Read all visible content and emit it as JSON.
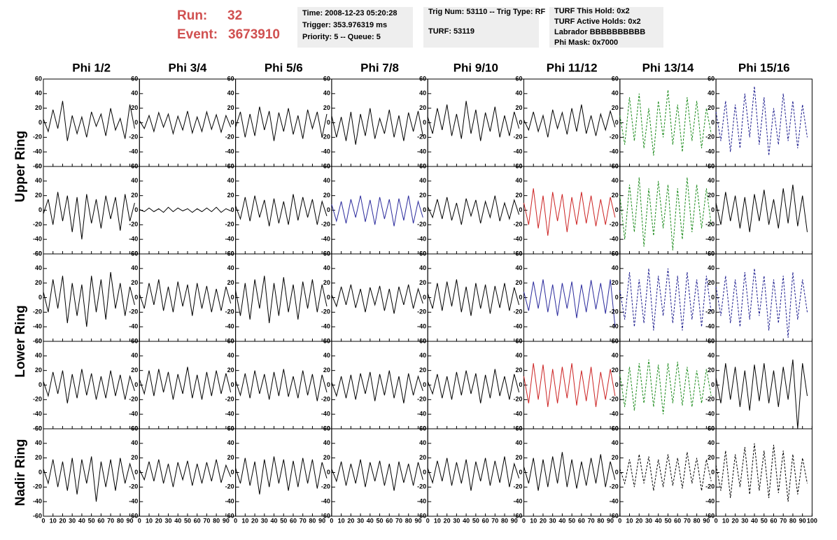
{
  "header": {
    "run_label": "Run:",
    "run": "32",
    "event_label": "Event:",
    "event": "3673910",
    "info1": [
      "Time: 2008-12-23 05:20:28",
      "Trigger: 353.976319 ms",
      "Priority: 5 -- Queue: 5"
    ],
    "info2": [
      "Trig Num: 53110 -- Trig Type: RF",
      "TURF: 53119"
    ],
    "info3": [
      "TURF This Hold: 0x2",
      "TURF Active Holds: 0x2",
      "Labrador BBBBBBBBBB",
      "Phi Mask: 0x7000"
    ]
  },
  "columns": [
    "Phi 1/2",
    "Phi 3/4",
    "Phi 5/6",
    "Phi 7/8",
    "Phi 9/10",
    "Phi 11/12",
    "Phi 13/14",
    "Phi 15/16"
  ],
  "row_labels": [
    "Upper Ring",
    "Lower Ring",
    "Nadir Ring"
  ],
  "axes": {
    "xlim": [
      0,
      100
    ],
    "xticks": [
      0,
      10,
      20,
      30,
      40,
      50,
      60,
      70,
      80,
      90,
      100
    ],
    "ylim": [
      -60,
      60
    ],
    "yticks": [
      -60,
      -40,
      -20,
      0,
      20,
      40,
      60
    ]
  },
  "x": [
    0,
    5,
    10,
    15,
    20,
    25,
    30,
    35,
    40,
    45,
    50,
    55,
    60,
    65,
    70,
    75,
    80,
    85,
    90,
    95
  ],
  "chart_data": [
    {
      "type": "line",
      "color": "#000000",
      "dashed": false,
      "values": [
        5,
        -12,
        18,
        -8,
        30,
        -25,
        10,
        -15,
        8,
        -20,
        15,
        -5,
        12,
        -18,
        20,
        -10,
        6,
        -22,
        25,
        -8
      ]
    },
    {
      "type": "line",
      "color": "#000000",
      "dashed": false,
      "values": [
        3,
        -8,
        10,
        -12,
        14,
        -6,
        12,
        -15,
        9,
        -10,
        16,
        -14,
        8,
        -12,
        15,
        -9,
        11,
        -13,
        10,
        -6
      ]
    },
    {
      "type": "line",
      "color": "#000000",
      "dashed": false,
      "values": [
        -6,
        15,
        -20,
        12,
        -18,
        22,
        -10,
        16,
        -25,
        14,
        -12,
        20,
        -16,
        10,
        -22,
        18,
        -8,
        15,
        -20,
        12
      ]
    },
    {
      "type": "line",
      "color": "#000000",
      "dashed": false,
      "values": [
        10,
        -20,
        8,
        -25,
        15,
        -30,
        12,
        -18,
        20,
        -22,
        6,
        -15,
        18,
        -20,
        10,
        -25,
        14,
        -12,
        16,
        -18
      ]
    },
    {
      "type": "line",
      "color": "#000000",
      "dashed": false,
      "values": [
        8,
        -15,
        20,
        -10,
        25,
        -18,
        12,
        -22,
        30,
        -15,
        18,
        -25,
        14,
        -12,
        22,
        -20,
        10,
        -18,
        15,
        -8
      ]
    },
    {
      "type": "line",
      "color": "#000000",
      "dashed": false,
      "values": [
        4,
        -10,
        15,
        -12,
        10,
        -20,
        18,
        -8,
        14,
        -16,
        20,
        -12,
        25,
        -15,
        10,
        -18,
        12,
        -10,
        16,
        -6
      ]
    },
    {
      "type": "line",
      "color": "#1a8a1a",
      "dashed": true,
      "values": [
        10,
        -30,
        35,
        -25,
        40,
        -35,
        20,
        -45,
        30,
        -20,
        45,
        -30,
        25,
        -40,
        35,
        -25,
        30,
        -35,
        20,
        -15
      ]
    },
    {
      "type": "line",
      "color": "#1a1a8c",
      "dashed": true,
      "values": [
        15,
        -25,
        30,
        -40,
        25,
        -35,
        40,
        -20,
        50,
        -30,
        35,
        -45,
        20,
        -30,
        40,
        -25,
        30,
        -35,
        25,
        -20
      ]
    },
    {
      "type": "line",
      "color": "#000000",
      "dashed": false,
      "values": [
        -5,
        15,
        -20,
        25,
        -15,
        20,
        -30,
        18,
        -40,
        22,
        -18,
        15,
        -25,
        20,
        -12,
        18,
        -28,
        22,
        -15,
        10
      ]
    },
    {
      "type": "line",
      "color": "#000000",
      "dashed": false,
      "values": [
        1,
        -2,
        3,
        -2,
        2,
        -3,
        4,
        -2,
        3,
        -1,
        2,
        -3,
        2,
        -2,
        3,
        -2,
        4,
        -3,
        2,
        -1
      ]
    },
    {
      "type": "line",
      "color": "#000000",
      "dashed": false,
      "values": [
        6,
        -12,
        18,
        -15,
        20,
        -10,
        14,
        -22,
        16,
        -18,
        12,
        -20,
        22,
        -14,
        18,
        -10,
        15,
        -20,
        12,
        -8
      ]
    },
    {
      "type": "line",
      "color": "#2a2a9c",
      "dashed": false,
      "values": [
        8,
        -15,
        12,
        -18,
        15,
        -10,
        20,
        -16,
        14,
        -20,
        18,
        -12,
        15,
        -22,
        16,
        -14,
        20,
        -18,
        12,
        -10
      ]
    },
    {
      "type": "line",
      "color": "#000000",
      "dashed": false,
      "values": [
        5,
        -10,
        15,
        -12,
        18,
        -14,
        10,
        -20,
        16,
        -8,
        14,
        -18,
        12,
        -10,
        20,
        -15,
        10,
        -12,
        14,
        -6
      ]
    },
    {
      "type": "line",
      "color": "#cc2222",
      "dashed": false,
      "values": [
        10,
        -20,
        30,
        -25,
        20,
        -35,
        25,
        -15,
        22,
        -30,
        18,
        -20,
        25,
        -18,
        20,
        -22,
        15,
        -20,
        18,
        -10
      ]
    },
    {
      "type": "line",
      "color": "#1a8a1a",
      "dashed": true,
      "values": [
        20,
        -40,
        35,
        -30,
        45,
        -50,
        30,
        -35,
        40,
        -25,
        35,
        -55,
        30,
        -40,
        45,
        -30,
        35,
        -25,
        30,
        -20
      ]
    },
    {
      "type": "line",
      "color": "#000000",
      "dashed": false,
      "values": [
        10,
        -20,
        25,
        -15,
        20,
        -25,
        18,
        -30,
        22,
        -15,
        28,
        -20,
        15,
        -25,
        30,
        -18,
        35,
        -22,
        20,
        -30
      ]
    },
    {
      "type": "line",
      "color": "#000000",
      "dashed": false,
      "values": [
        8,
        -20,
        25,
        -15,
        30,
        -35,
        20,
        -25,
        18,
        -40,
        30,
        -20,
        25,
        -30,
        35,
        -15,
        20,
        -25,
        15,
        -10
      ]
    },
    {
      "type": "line",
      "color": "#000000",
      "dashed": false,
      "values": [
        5,
        -15,
        20,
        -10,
        25,
        -18,
        15,
        -20,
        22,
        -12,
        18,
        -25,
        20,
        -15,
        16,
        -20,
        12,
        -18,
        15,
        -8
      ]
    },
    {
      "type": "line",
      "color": "#000000",
      "dashed": false,
      "values": [
        10,
        -25,
        20,
        -30,
        25,
        -15,
        30,
        -35,
        20,
        -25,
        28,
        -20,
        18,
        -30,
        22,
        -15,
        25,
        -20,
        18,
        -12
      ]
    },
    {
      "type": "line",
      "color": "#000000",
      "dashed": false,
      "values": [
        4,
        -12,
        15,
        -10,
        18,
        -14,
        12,
        -20,
        14,
        -10,
        16,
        -18,
        12,
        -22,
        15,
        -10,
        18,
        -15,
        12,
        -8
      ]
    },
    {
      "type": "line",
      "color": "#000000",
      "dashed": false,
      "values": [
        6,
        -15,
        20,
        -18,
        22,
        -12,
        25,
        -20,
        15,
        -25,
        20,
        -15,
        18,
        -22,
        16,
        -14,
        20,
        -18,
        14,
        -10
      ]
    },
    {
      "type": "line",
      "color": "#2a2a9c",
      "dashed": false,
      "values": [
        8,
        -18,
        22,
        -15,
        25,
        -20,
        18,
        -25,
        20,
        -15,
        22,
        -28,
        18,
        -20,
        24,
        -16,
        20,
        -22,
        25,
        -40
      ]
    },
    {
      "type": "line",
      "color": "#1a1a8c",
      "dashed": true,
      "values": [
        10,
        -30,
        35,
        -40,
        25,
        -35,
        40,
        -45,
        30,
        -25,
        40,
        -35,
        30,
        -45,
        35,
        -30,
        25,
        -40,
        30,
        -20
      ]
    },
    {
      "type": "line",
      "color": "#1a1a8c",
      "dashed": true,
      "values": [
        15,
        -25,
        30,
        -35,
        25,
        -40,
        35,
        -30,
        40,
        -25,
        30,
        -45,
        25,
        -35,
        30,
        -55,
        35,
        -30,
        25,
        -20
      ]
    },
    {
      "type": "line",
      "color": "#000000",
      "dashed": false,
      "values": [
        5,
        -15,
        18,
        -12,
        20,
        -25,
        15,
        -18,
        22,
        -14,
        16,
        -20,
        12,
        -18,
        20,
        -15,
        14,
        -20,
        12,
        -8
      ]
    },
    {
      "type": "line",
      "color": "#000000",
      "dashed": false,
      "values": [
        8,
        -12,
        20,
        -15,
        22,
        -10,
        18,
        -20,
        15,
        -12,
        25,
        -18,
        14,
        -20,
        18,
        -15,
        20,
        -12,
        16,
        -10
      ]
    },
    {
      "type": "line",
      "color": "#000000",
      "dashed": false,
      "values": [
        6,
        -14,
        16,
        -18,
        20,
        -12,
        15,
        -20,
        18,
        -15,
        22,
        -16,
        12,
        -18,
        20,
        -14,
        15,
        -22,
        14,
        -10
      ]
    },
    {
      "type": "line",
      "color": "#000000",
      "dashed": false,
      "values": [
        4,
        -15,
        12,
        -18,
        14,
        -20,
        16,
        -12,
        18,
        -22,
        15,
        -14,
        20,
        -18,
        12,
        -25,
        16,
        -14,
        12,
        -8
      ]
    },
    {
      "type": "line",
      "color": "#000000",
      "dashed": false,
      "values": [
        5,
        -12,
        15,
        -18,
        12,
        -20,
        18,
        -14,
        20,
        -12,
        16,
        -25,
        14,
        -18,
        22,
        -15,
        12,
        -20,
        15,
        -10
      ]
    },
    {
      "type": "line",
      "color": "#cc2222",
      "dashed": false,
      "values": [
        12,
        -25,
        30,
        -20,
        28,
        -30,
        22,
        -25,
        25,
        -18,
        30,
        -28,
        20,
        -22,
        25,
        -30,
        18,
        -20,
        22,
        -15
      ]
    },
    {
      "type": "line",
      "color": "#1a8a1a",
      "dashed": true,
      "values": [
        15,
        -30,
        25,
        -35,
        30,
        -25,
        35,
        -30,
        28,
        -40,
        30,
        -25,
        32,
        -28,
        25,
        -30,
        20,
        -25,
        22,
        -15
      ]
    },
    {
      "type": "line",
      "color": "#000000",
      "dashed": false,
      "values": [
        10,
        -25,
        30,
        -20,
        25,
        -30,
        20,
        -35,
        28,
        -22,
        30,
        -25,
        20,
        -30,
        25,
        -20,
        35,
        -60,
        30,
        -15
      ]
    },
    {
      "type": "line",
      "color": "#000000",
      "dashed": false,
      "values": [
        5,
        -15,
        18,
        -20,
        15,
        -25,
        20,
        -30,
        18,
        -15,
        22,
        -40,
        15,
        -20,
        18,
        -25,
        20,
        -15,
        12,
        -10
      ]
    },
    {
      "type": "line",
      "color": "#000000",
      "dashed": false,
      "values": [
        4,
        -10,
        15,
        -12,
        18,
        -15,
        12,
        -20,
        14,
        -10,
        16,
        -18,
        12,
        -15,
        14,
        -12,
        18,
        -14,
        10,
        -6
      ]
    },
    {
      "type": "line",
      "color": "#000000",
      "dashed": false,
      "values": [
        6,
        -15,
        20,
        -18,
        15,
        -30,
        18,
        -20,
        22,
        -15,
        18,
        -25,
        16,
        -20,
        20,
        -15,
        18,
        -22,
        14,
        -8
      ]
    },
    {
      "type": "line",
      "color": "#000000",
      "dashed": false,
      "values": [
        5,
        -12,
        15,
        -18,
        12,
        -15,
        18,
        -20,
        14,
        -12,
        16,
        -18,
        12,
        -25,
        15,
        -14,
        12,
        -18,
        14,
        -10
      ]
    },
    {
      "type": "line",
      "color": "#000000",
      "dashed": false,
      "values": [
        6,
        -14,
        16,
        -12,
        20,
        -18,
        14,
        -15,
        18,
        -25,
        15,
        -12,
        20,
        -18,
        16,
        -14,
        22,
        -20,
        12,
        -8
      ]
    },
    {
      "type": "line",
      "color": "#000000",
      "dashed": false,
      "values": [
        8,
        -15,
        20,
        -25,
        18,
        -20,
        22,
        -15,
        28,
        -20,
        18,
        -22,
        15,
        -18,
        20,
        -15,
        25,
        -20,
        15,
        -10
      ]
    },
    {
      "type": "line",
      "color": "#000000",
      "dashed": true,
      "values": [
        5,
        -15,
        18,
        -20,
        25,
        -15,
        22,
        -25,
        18,
        -20,
        25,
        -18,
        20,
        -22,
        28,
        -15,
        20,
        -25,
        18,
        -12
      ]
    },
    {
      "type": "line",
      "color": "#000000",
      "dashed": true,
      "values": [
        10,
        -25,
        30,
        -35,
        25,
        -20,
        35,
        -30,
        40,
        -25,
        30,
        -35,
        38,
        -28,
        30,
        -40,
        25,
        -30,
        20,
        -15
      ]
    }
  ]
}
